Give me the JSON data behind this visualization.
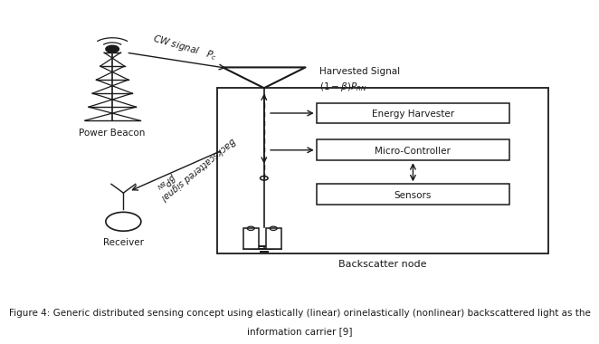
{
  "caption_line1": "Figure 4: Generic distributed sensing concept using elastically (linear) orinelastically (nonlinear) backscattered light as the",
  "caption_line2": "information carrier [9]",
  "bg_color": "#ffffff",
  "fg_color": "#1a1a1a",
  "caption_fontsize": 7.5
}
